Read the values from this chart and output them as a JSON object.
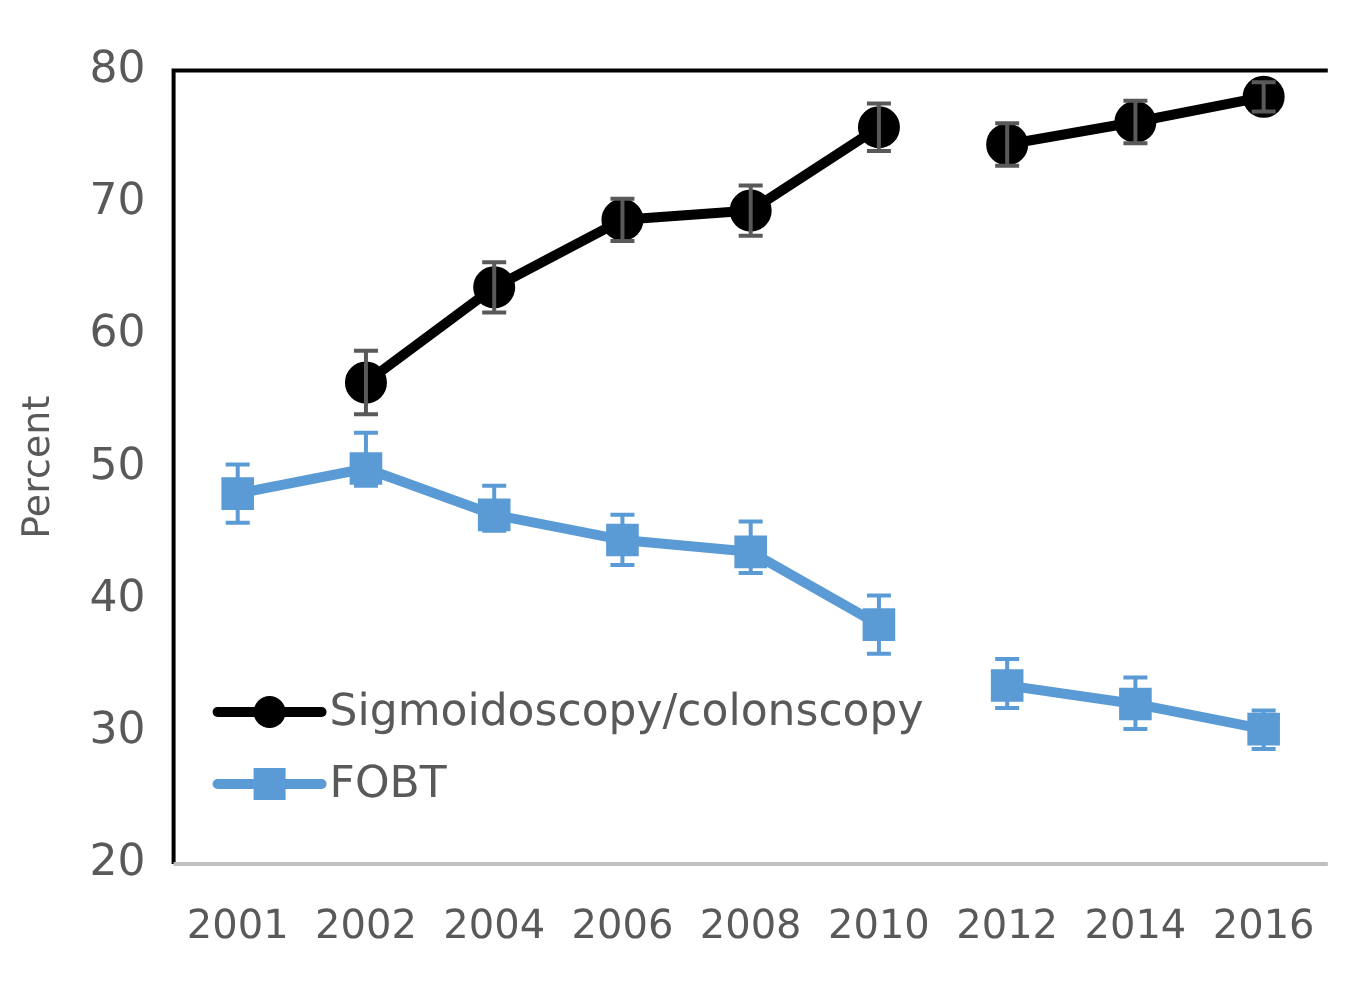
{
  "chart_data": {
    "type": "line",
    "ylabel": "Percent",
    "categories": [
      "2001",
      "2002",
      "2004",
      "2006",
      "2008",
      "2010",
      "2012",
      "2014",
      "2016"
    ],
    "series": [
      {
        "name": "Sigmoidoscopy/colonscopy",
        "color": "#000000",
        "marker": "circle",
        "values": [
          null,
          56.4,
          63.6,
          68.7,
          69.4,
          75.7,
          null,
          null,
          null
        ],
        "errors": [
          null,
          2.4,
          1.9,
          1.6,
          1.9,
          1.8,
          null,
          null,
          null
        ]
      },
      {
        "name": "FOBT",
        "color": "#5b9bd5",
        "marker": "square",
        "values": [
          48.0,
          49.9,
          46.4,
          44.5,
          43.6,
          38.1,
          null,
          null,
          null
        ],
        "errors": [
          2.2,
          [
            48.6,
            52.6
          ],
          [
            45.2,
            48.6
          ],
          1.9,
          [
            42.0,
            45.9
          ],
          2.2,
          null,
          null,
          null
        ]
      },
      {
        "color": "#000000",
        "marker": "circle",
        "values": [
          null,
          null,
          null,
          null,
          null,
          null,
          74.4,
          76.1,
          78.0
        ],
        "errors": [
          null,
          null,
          null,
          null,
          null,
          null,
          1.6,
          1.6,
          1.1
        ]
      },
      {
        "color": "#5b9bd5",
        "marker": "square",
        "values": [
          null,
          null,
          null,
          null,
          null,
          null,
          33.5,
          32.1,
          30.2
        ],
        "errors": [
          null,
          null,
          null,
          null,
          null,
          null,
          [
            31.8,
            35.5
          ],
          [
            30.2,
            34.1
          ],
          [
            28.7,
            31.6
          ]
        ]
      }
    ],
    "ylim": [
      20,
      80
    ],
    "yticks": [
      20,
      30,
      40,
      50,
      60,
      70,
      80
    ],
    "grid": false,
    "legend": "bottom left"
  }
}
